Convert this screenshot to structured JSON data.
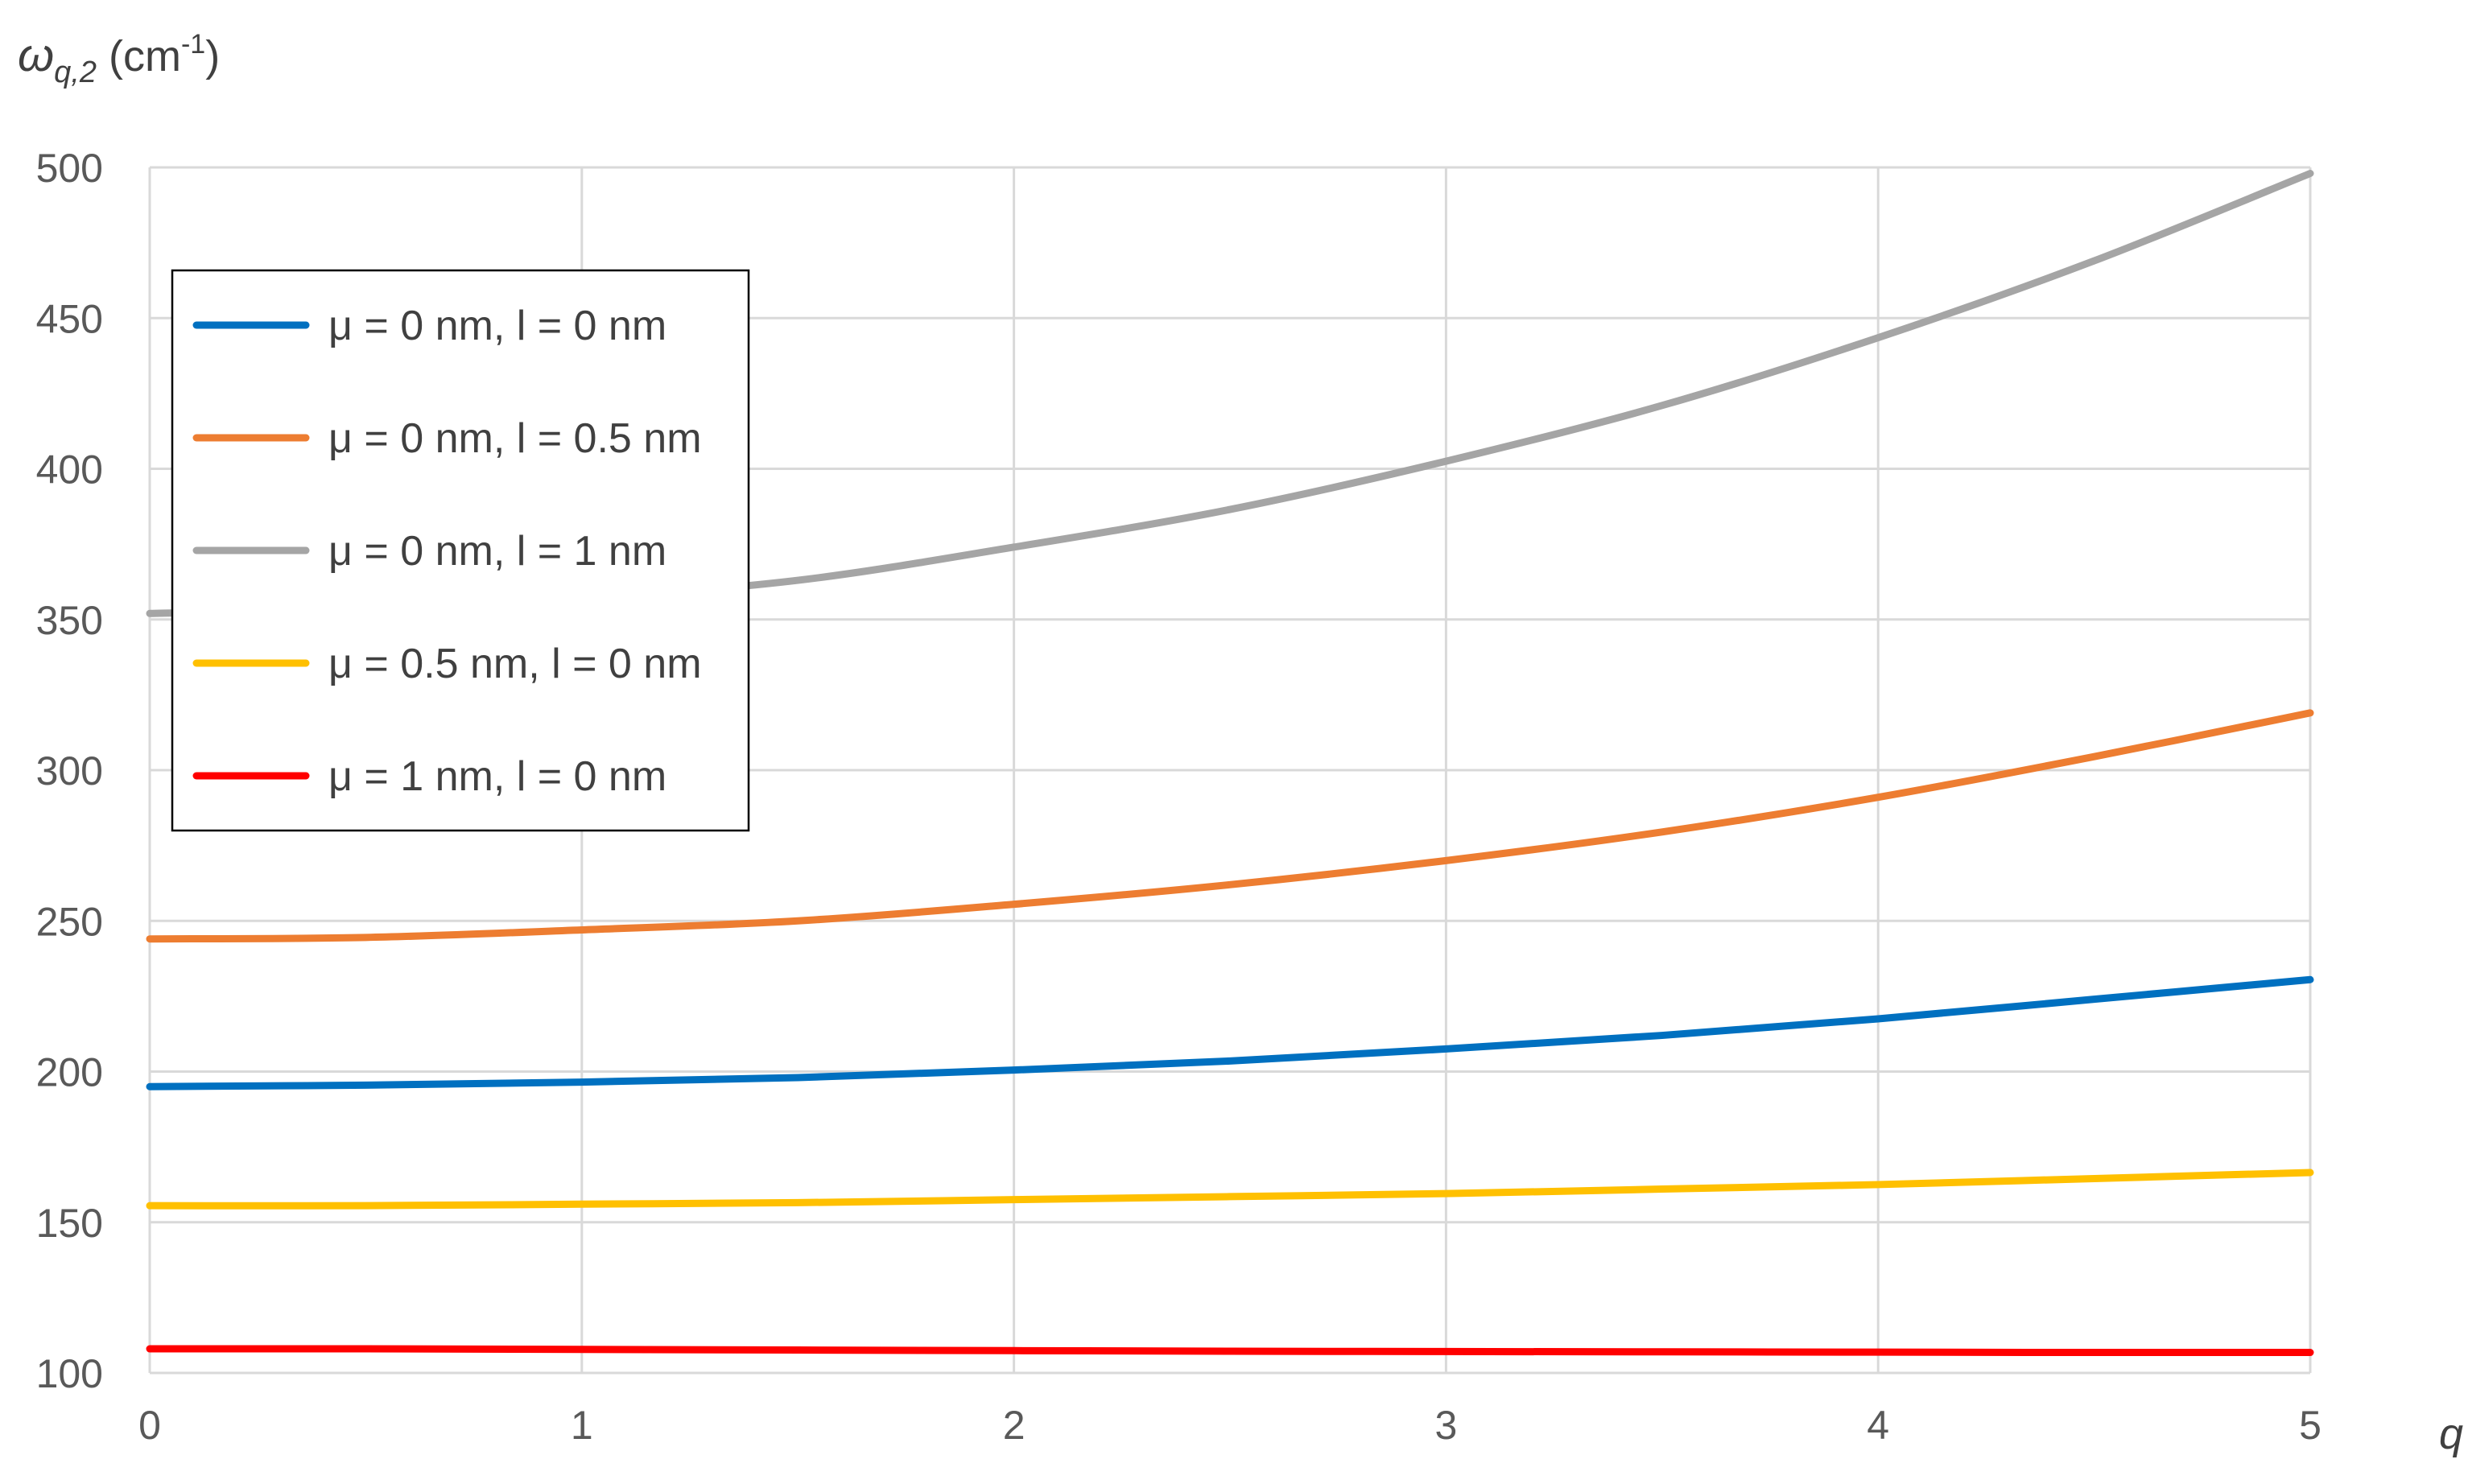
{
  "chart_data": {
    "type": "line",
    "ylabel": {
      "symbol": "ω",
      "subscript": "q,2",
      "unit_prefix": " (cm",
      "unit_sup": "-1",
      "unit_suffix": ")"
    },
    "xlabel": "q",
    "xlim": [
      0,
      5
    ],
    "ylim": [
      100,
      500
    ],
    "xticks": [
      0,
      1,
      2,
      3,
      4,
      5
    ],
    "yticks": [
      100,
      150,
      200,
      250,
      300,
      350,
      400,
      450,
      500
    ],
    "grid": true,
    "legend_position": "top-left",
    "x": [
      0,
      0.5,
      1,
      1.5,
      2,
      2.5,
      3,
      3.5,
      4,
      4.5,
      5
    ],
    "series": [
      {
        "name": "μ = 0 nm, l = 0 nm",
        "color": "#0070C0",
        "values": [
          195,
          195.5,
          196.5,
          198,
          200.5,
          203.5,
          207.5,
          212,
          217.5,
          224,
          230.5
        ]
      },
      {
        "name": "μ = 0 nm, l = 0.5 nm",
        "color": "#ED7D31",
        "values": [
          244,
          244.5,
          247,
          250,
          255.5,
          262,
          270,
          279.5,
          291,
          304.5,
          319
        ]
      },
      {
        "name": "μ = 0 nm, l = 1 nm",
        "color": "#A5A5A5",
        "values": [
          352,
          353.5,
          357,
          363,
          374,
          386.5,
          402.5,
          421,
          443.5,
          469,
          498
        ]
      },
      {
        "name": "μ = 0.5 nm, l = 0 nm",
        "color": "#FFC000",
        "values": [
          155.5,
          155.5,
          156,
          156.5,
          157.5,
          158.5,
          159.5,
          161,
          162.5,
          164.5,
          166.5
        ]
      },
      {
        "name": "μ = 1 nm, l = 0 nm",
        "color": "#FF0000",
        "values": [
          108,
          108,
          107.8,
          107.6,
          107.4,
          107.2,
          107.1,
          107,
          106.9,
          106.8,
          106.8
        ]
      }
    ]
  }
}
